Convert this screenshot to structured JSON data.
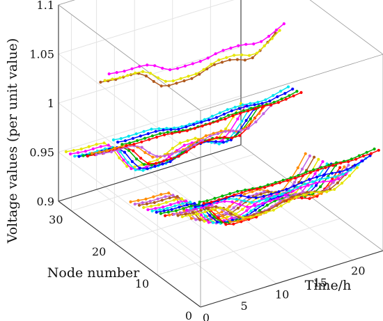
{
  "chart_data": {
    "type": "line",
    "projection": "3d",
    "title": "",
    "xlabel": "Time/h",
    "ylabel": "Node number",
    "zlabel": "Voltage values  (per unit value)",
    "xlim": [
      0,
      24
    ],
    "ylim": [
      0,
      33
    ],
    "zlim": [
      0.9,
      1.1
    ],
    "x_ticks": [
      0,
      5,
      10,
      15,
      20
    ],
    "y_ticks": [
      0,
      10,
      20,
      30
    ],
    "z_ticks": [
      0.9,
      0.95,
      1,
      1.05,
      1.1
    ],
    "z_tick_labels": [
      "0.9",
      "0.95",
      "1",
      "1.05",
      "1.1"
    ],
    "grid": true,
    "legend": "none",
    "x": [
      1,
      2,
      3,
      4,
      5,
      6,
      7,
      8,
      9,
      10,
      11,
      12,
      13,
      14,
      15,
      16,
      17,
      18,
      19,
      20,
      21,
      22,
      23,
      24
    ],
    "colors": [
      "#ff0000",
      "#00b000",
      "#0000ff",
      "#00e5ee",
      "#ff00ff",
      "#e5e500",
      "#b05a1e",
      "#c060e0",
      "#ff8c00"
    ],
    "series": [
      {
        "node": 1,
        "values": [
          1.0,
          0.999,
          0.999,
          0.999,
          0.999,
          0.999,
          0.999,
          0.998,
          0.997,
          0.997,
          0.997,
          0.997,
          0.997,
          0.997,
          0.998,
          0.998,
          0.998,
          0.998,
          0.998,
          0.997,
          0.997,
          0.998,
          0.998,
          0.999
        ]
      },
      {
        "node": 2,
        "values": [
          0.998,
          0.997,
          0.997,
          0.997,
          0.997,
          0.997,
          0.996,
          0.995,
          0.994,
          0.994,
          0.994,
          0.994,
          0.994,
          0.994,
          0.995,
          0.995,
          0.995,
          0.995,
          0.995,
          0.994,
          0.994,
          0.995,
          0.996,
          0.997
        ]
      },
      {
        "node": 3,
        "values": [
          0.99,
          0.989,
          0.989,
          0.989,
          0.989,
          0.989,
          0.987,
          0.983,
          0.98,
          0.979,
          0.979,
          0.979,
          0.979,
          0.98,
          0.981,
          0.982,
          0.982,
          0.982,
          0.981,
          0.98,
          0.98,
          0.982,
          0.984,
          0.987
        ]
      },
      {
        "node": 4,
        "values": [
          0.985,
          0.984,
          0.984,
          0.984,
          0.984,
          0.983,
          0.98,
          0.976,
          0.972,
          0.971,
          0.971,
          0.971,
          0.971,
          0.972,
          0.973,
          0.974,
          0.974,
          0.974,
          0.973,
          0.972,
          0.972,
          0.974,
          0.977,
          0.981
        ]
      },
      {
        "node": 5,
        "values": [
          0.98,
          0.979,
          0.978,
          0.978,
          0.978,
          0.977,
          0.974,
          0.969,
          0.964,
          0.963,
          0.963,
          0.963,
          0.963,
          0.964,
          0.966,
          0.967,
          0.967,
          0.967,
          0.966,
          0.964,
          0.964,
          0.967,
          0.971,
          0.975
        ]
      },
      {
        "node": 6,
        "values": [
          0.97,
          0.969,
          0.968,
          0.968,
          0.968,
          0.967,
          0.963,
          0.956,
          0.95,
          0.948,
          0.948,
          0.948,
          0.948,
          0.95,
          0.952,
          0.954,
          0.954,
          0.954,
          0.952,
          0.95,
          0.95,
          0.954,
          0.959,
          0.965
        ]
      },
      {
        "node": 7,
        "values": [
          0.968,
          0.967,
          0.966,
          0.966,
          0.966,
          0.965,
          0.961,
          0.953,
          0.947,
          0.945,
          0.945,
          0.945,
          0.945,
          0.947,
          0.949,
          0.951,
          0.951,
          0.951,
          0.949,
          0.947,
          0.947,
          0.951,
          0.957,
          0.963
        ]
      },
      {
        "node": 8,
        "values": [
          0.966,
          0.965,
          0.964,
          0.964,
          0.964,
          0.963,
          0.958,
          0.95,
          0.943,
          0.941,
          0.941,
          0.941,
          0.941,
          0.943,
          0.946,
          0.948,
          0.948,
          0.948,
          0.946,
          0.943,
          0.943,
          0.948,
          0.954,
          0.961
        ]
      },
      {
        "node": 9,
        "values": [
          0.962,
          0.961,
          0.96,
          0.96,
          0.96,
          0.959,
          0.953,
          0.944,
          0.936,
          0.934,
          0.934,
          0.934,
          0.934,
          0.936,
          0.939,
          0.941,
          0.941,
          0.941,
          0.939,
          0.936,
          0.936,
          0.941,
          0.948,
          0.956
        ]
      },
      {
        "node": 10,
        "values": [
          0.958,
          0.957,
          0.956,
          0.956,
          0.956,
          0.955,
          0.949,
          0.939,
          0.93,
          0.928,
          0.928,
          0.928,
          0.928,
          0.93,
          0.933,
          0.935,
          0.935,
          0.935,
          0.933,
          0.93,
          0.93,
          0.935,
          0.943,
          0.952
        ]
      },
      {
        "node": 11,
        "values": [
          0.957,
          0.956,
          0.955,
          0.955,
          0.955,
          0.954,
          0.948,
          0.937,
          0.929,
          0.926,
          0.926,
          0.926,
          0.926,
          0.929,
          0.932,
          0.934,
          0.934,
          0.934,
          0.932,
          0.929,
          0.929,
          0.934,
          0.942,
          0.951
        ]
      },
      {
        "node": 12,
        "values": [
          0.955,
          0.954,
          0.953,
          0.953,
          0.953,
          0.952,
          0.946,
          0.935,
          0.926,
          0.923,
          0.923,
          0.923,
          0.923,
          0.926,
          0.929,
          0.932,
          0.932,
          0.932,
          0.929,
          0.926,
          0.926,
          0.932,
          0.94,
          0.949
        ]
      },
      {
        "node": 13,
        "values": [
          0.953,
          0.952,
          0.951,
          0.951,
          0.951,
          0.95,
          0.943,
          0.931,
          0.922,
          0.919,
          0.919,
          0.919,
          0.919,
          0.922,
          0.925,
          0.928,
          0.928,
          0.928,
          0.925,
          0.922,
          0.922,
          0.928,
          0.937,
          0.946
        ]
      },
      {
        "node": 14,
        "values": [
          0.951,
          0.95,
          0.949,
          0.949,
          0.949,
          0.948,
          0.941,
          0.929,
          0.919,
          0.916,
          0.916,
          0.916,
          0.916,
          0.919,
          0.923,
          0.926,
          0.926,
          0.926,
          0.923,
          0.919,
          0.919,
          0.926,
          0.935,
          0.945
        ]
      },
      {
        "node": 15,
        "values": [
          0.95,
          0.949,
          0.948,
          0.948,
          0.948,
          0.947,
          0.94,
          0.927,
          0.917,
          0.914,
          0.914,
          0.914,
          0.914,
          0.917,
          0.921,
          0.924,
          0.924,
          0.924,
          0.921,
          0.917,
          0.917,
          0.924,
          0.933,
          0.944
        ]
      },
      {
        "node": 16,
        "values": [
          0.949,
          0.948,
          0.947,
          0.947,
          0.947,
          0.946,
          0.939,
          0.926,
          0.915,
          0.912,
          0.912,
          0.912,
          0.912,
          0.915,
          0.919,
          0.922,
          0.922,
          0.922,
          0.919,
          0.915,
          0.915,
          0.922,
          0.932,
          0.943
        ]
      },
      {
        "node": 17,
        "values": [
          0.947,
          0.946,
          0.945,
          0.945,
          0.945,
          0.944,
          0.937,
          0.923,
          0.912,
          0.909,
          0.909,
          0.909,
          0.909,
          0.912,
          0.916,
          0.919,
          0.919,
          0.919,
          0.916,
          0.912,
          0.912,
          0.919,
          0.93,
          0.941
        ]
      },
      {
        "node": 18,
        "values": [
          0.946,
          0.945,
          0.944,
          0.944,
          0.944,
          0.943,
          0.935,
          0.921,
          0.91,
          0.907,
          0.907,
          0.907,
          0.907,
          0.91,
          0.914,
          0.918,
          0.918,
          0.918,
          0.914,
          0.91,
          0.91,
          0.918,
          0.928,
          0.94
        ]
      },
      {
        "node": 19,
        "values": [
          1.0,
          0.999,
          0.999,
          0.999,
          0.999,
          0.999,
          0.998,
          0.997,
          0.996,
          0.996,
          0.996,
          0.996,
          0.996,
          0.996,
          0.997,
          0.997,
          0.997,
          0.997,
          0.997,
          0.996,
          0.996,
          0.997,
          0.998,
          0.999
        ]
      },
      {
        "node": 20,
        "values": [
          0.998,
          0.997,
          0.997,
          0.997,
          0.997,
          0.997,
          0.996,
          0.994,
          0.993,
          0.992,
          0.992,
          0.992,
          0.992,
          0.993,
          0.994,
          0.994,
          0.994,
          0.994,
          0.994,
          0.993,
          0.993,
          0.994,
          0.995,
          0.997
        ]
      },
      {
        "node": 21,
        "values": [
          0.997,
          0.996,
          0.996,
          0.996,
          0.996,
          0.996,
          0.995,
          0.993,
          0.991,
          0.991,
          0.991,
          0.991,
          0.991,
          0.991,
          0.992,
          0.993,
          0.993,
          0.993,
          0.992,
          0.991,
          0.991,
          0.993,
          0.994,
          0.996
        ]
      },
      {
        "node": 22,
        "values": [
          0.996,
          0.995,
          0.995,
          0.995,
          0.995,
          0.995,
          0.993,
          0.991,
          0.989,
          0.988,
          0.988,
          0.988,
          0.988,
          0.989,
          0.99,
          0.991,
          0.991,
          0.991,
          0.99,
          0.989,
          0.989,
          0.991,
          0.993,
          0.995
        ]
      },
      {
        "node": 23,
        "values": [
          1.06,
          1.059,
          1.058,
          1.058,
          1.058,
          1.057,
          1.054,
          1.049,
          1.045,
          1.044,
          1.044,
          1.044,
          1.044,
          1.045,
          1.047,
          1.048,
          1.048,
          1.048,
          1.047,
          1.045,
          1.045,
          1.048,
          1.052,
          1.056
        ]
      },
      {
        "node": 24,
        "values": [
          1.05,
          1.049,
          1.048,
          1.048,
          1.048,
          1.047,
          1.043,
          1.036,
          1.03,
          1.028,
          1.028,
          1.028,
          1.028,
          1.03,
          1.033,
          1.035,
          1.035,
          1.035,
          1.033,
          1.03,
          1.03,
          1.035,
          1.04,
          1.046
        ]
      },
      {
        "node": 25,
        "values": [
          1.045,
          1.044,
          1.043,
          1.043,
          1.043,
          1.042,
          1.037,
          1.029,
          1.022,
          1.02,
          1.02,
          1.02,
          1.02,
          1.022,
          1.025,
          1.027,
          1.027,
          1.027,
          1.025,
          1.022,
          1.022,
          1.027,
          1.033,
          1.04
        ]
      },
      {
        "node": 26,
        "values": [
          0.968,
          0.967,
          0.966,
          0.966,
          0.966,
          0.965,
          0.961,
          0.953,
          0.947,
          0.945,
          0.945,
          0.945,
          0.945,
          0.947,
          0.949,
          0.951,
          0.951,
          0.951,
          0.949,
          0.947,
          0.947,
          0.951,
          0.957,
          0.963
        ]
      },
      {
        "node": 27,
        "values": [
          0.966,
          0.965,
          0.964,
          0.964,
          0.964,
          0.963,
          0.958,
          0.95,
          0.943,
          0.941,
          0.941,
          0.941,
          0.941,
          0.943,
          0.946,
          0.948,
          0.948,
          0.948,
          0.946,
          0.943,
          0.943,
          0.948,
          0.954,
          0.961
        ]
      },
      {
        "node": 28,
        "values": [
          0.96,
          0.959,
          0.958,
          0.958,
          0.958,
          0.957,
          0.951,
          0.941,
          0.933,
          0.931,
          0.931,
          0.931,
          0.931,
          0.933,
          0.936,
          0.938,
          0.938,
          0.938,
          0.936,
          0.933,
          0.933,
          0.938,
          0.946,
          0.954
        ]
      },
      {
        "node": 29,
        "values": [
          0.957,
          0.956,
          0.955,
          0.955,
          0.955,
          0.954,
          0.948,
          0.937,
          0.929,
          0.926,
          0.926,
          0.926,
          0.926,
          0.929,
          0.932,
          0.934,
          0.934,
          0.934,
          0.932,
          0.929,
          0.929,
          0.934,
          0.942,
          0.951
        ]
      },
      {
        "node": 30,
        "values": [
          0.953,
          0.952,
          0.951,
          0.951,
          0.951,
          0.95,
          0.943,
          0.931,
          0.922,
          0.919,
          0.919,
          0.919,
          0.919,
          0.922,
          0.925,
          0.928,
          0.928,
          0.928,
          0.925,
          0.922,
          0.922,
          0.928,
          0.937,
          0.946
        ]
      },
      {
        "node": 31,
        "values": [
          0.95,
          0.949,
          0.948,
          0.948,
          0.948,
          0.947,
          0.94,
          0.927,
          0.917,
          0.914,
          0.914,
          0.914,
          0.914,
          0.917,
          0.921,
          0.924,
          0.924,
          0.924,
          0.921,
          0.917,
          0.917,
          0.924,
          0.933,
          0.944
        ]
      },
      {
        "node": 32,
        "values": [
          0.949,
          0.948,
          0.947,
          0.947,
          0.947,
          0.946,
          0.939,
          0.926,
          0.915,
          0.912,
          0.912,
          0.912,
          0.912,
          0.915,
          0.919,
          0.922,
          0.922,
          0.922,
          0.919,
          0.915,
          0.915,
          0.922,
          0.932,
          0.943
        ]
      },
      {
        "node": 33,
        "values": [
          0.948,
          0.947,
          0.946,
          0.946,
          0.946,
          0.945,
          0.938,
          0.925,
          0.914,
          0.911,
          0.911,
          0.911,
          0.911,
          0.914,
          0.918,
          0.921,
          0.921,
          0.921,
          0.918,
          0.914,
          0.914,
          0.921,
          0.931,
          0.942
        ]
      }
    ]
  }
}
